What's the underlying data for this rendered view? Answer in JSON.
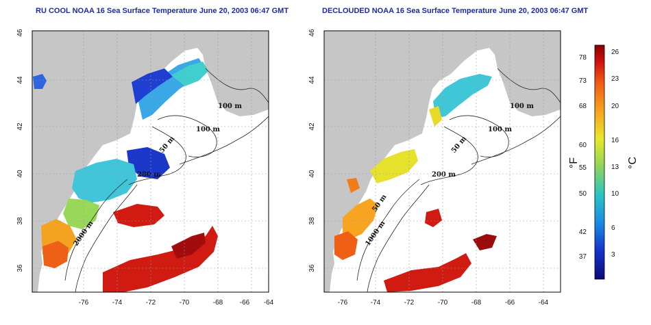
{
  "panels": [
    {
      "title": "RU COOL NOAA 16 Sea Surface Temperature June 20, 2003 06:47 GMT"
    },
    {
      "title": "DECLOUDED NOAA 16 Sea Surface Temperature June 20, 2003 06:47 GMT"
    }
  ],
  "axes": {
    "lon_ticks": [
      "-76",
      "-74",
      "-72",
      "-70",
      "-68",
      "-66",
      "-64"
    ],
    "lat_ticks": [
      "46",
      "44",
      "42",
      "40",
      "38",
      "36"
    ]
  },
  "contours": {
    "label_100m": "100 m",
    "label_50m": "50 m",
    "label_200m": "200 m",
    "label_1000m": "1000 m",
    "label_2000m": "2000 m"
  },
  "colorbar": {
    "fahrenheit_ticks": [
      "78",
      "73",
      "68",
      "60",
      "55",
      "50",
      "42",
      "37"
    ],
    "celsius_ticks": [
      "26",
      "23",
      "20",
      "16",
      "13",
      "10",
      "6",
      "3"
    ],
    "fahrenheit_unit": "°F",
    "celsius_unit": "°C",
    "colors": [
      "#8b0000",
      "#d01010",
      "#f25a12",
      "#f7a21f",
      "#e9e82a",
      "#8fd45a",
      "#28c4c4",
      "#1a8ae6",
      "#1532c8",
      "#0a0a7a"
    ]
  },
  "colors": {
    "land": "#c6c6c6",
    "no_data": "#ffffff",
    "contour": "#222222"
  }
}
